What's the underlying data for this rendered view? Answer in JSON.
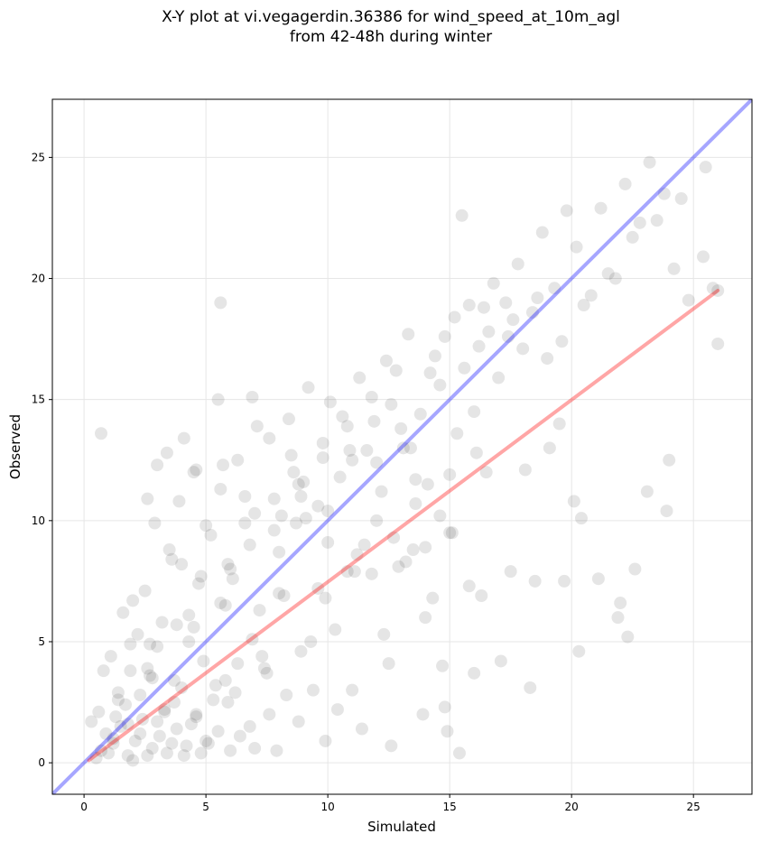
{
  "chart_data": {
    "type": "scatter",
    "title": "X-Y plot at vi.vegagerdin.36386 for wind_speed_at_10m_agl",
    "subtitle": "from 42-48h during winter",
    "xlabel": "Simulated",
    "ylabel": "Observed",
    "xlim": [
      -1.3,
      27.4
    ],
    "ylim": [
      -1.3,
      27.4
    ],
    "xticks": [
      0,
      5,
      10,
      15,
      20,
      25
    ],
    "yticks": [
      0,
      5,
      10,
      15,
      20,
      25
    ],
    "grid": true,
    "point_color": "#000000",
    "point_alpha": 0.1,
    "lines": [
      {
        "role": "identity",
        "color": "#0000ff",
        "x": [
          -1.3,
          27.4
        ],
        "y": [
          -1.3,
          27.4
        ]
      },
      {
        "role": "fit",
        "color": "#ff0000",
        "x": [
          0.2,
          26.0
        ],
        "y": [
          0.1,
          19.5
        ]
      }
    ],
    "points": {
      "x": [
        0.7,
        0.9,
        1.2,
        1.5,
        1.8,
        2.1,
        2.4,
        2.8,
        3.1,
        3.4,
        3.8,
        4.2,
        4.6,
        5.0,
        5.5,
        6.0,
        0.5,
        1.0,
        1.3,
        1.7,
        2.0,
        2.3,
        2.6,
        3.0,
        3.3,
        3.6,
        4.0,
        4.4,
        4.8,
        5.3,
        5.8,
        6.4,
        7.0,
        7.6,
        0.8,
        1.1,
        1.4,
        1.9,
        2.2,
        2.7,
        3.2,
        3.7,
        4.3,
        4.9,
        5.6,
        6.2,
        6.9,
        7.5,
        8.2,
        8.9,
        9.6,
        10.3,
        11.0,
        11.8,
        12.5,
        13.2,
        14.0,
        14.8,
        1.6,
        2.5,
        3.5,
        4.5,
        5.2,
        6.1,
        7.2,
        8.0,
        8.7,
        9.3,
        10.0,
        10.8,
        11.5,
        12.2,
        12.9,
        13.6,
        14.3,
        15.0,
        15.8,
        16.5,
        0.3,
        0.6,
        2.9,
        3.9,
        4.7,
        5.7,
        6.6,
        7.8,
        8.5,
        9.1,
        9.8,
        10.5,
        11.2,
        12.0,
        12.7,
        13.4,
        14.1,
        14.6,
        15.3,
        16.1,
        2.0,
        3.0,
        4.0,
        5.0,
        6.0,
        7.0,
        8.0,
        9.0,
        10.0,
        11.0,
        12.0,
        13.0,
        14.0,
        15.0,
        16.0,
        17.0,
        18.0,
        19.0,
        2.6,
        3.6,
        4.6,
        5.6,
        6.6,
        7.6,
        8.6,
        9.6,
        10.6,
        11.6,
        12.6,
        13.6,
        14.6,
        15.6,
        16.6,
        17.6,
        18.6,
        19.6,
        20.5,
        21.5,
        22.5,
        23.5,
        24.5,
        25.5,
        1.8,
        2.8,
        3.8,
        4.8,
        5.8,
        6.8,
        7.8,
        8.8,
        9.8,
        10.8,
        11.8,
        12.8,
        13.8,
        14.8,
        15.8,
        16.8,
        17.8,
        18.8,
        19.8,
        20.8,
        21.8,
        22.8,
        23.8,
        24.8,
        25.8,
        4.1,
        5.5,
        6.3,
        7.1,
        8.4,
        9.2,
        10.1,
        11.3,
        12.4,
        13.3,
        14.2,
        15.2,
        16.2,
        17.3,
        18.4,
        19.3,
        20.2,
        21.2,
        22.2,
        23.2,
        24.2,
        0.7,
        5.6,
        2.6,
        3.4,
        4.5,
        6.9,
        8.1,
        10.9,
        11.9,
        13.1,
        14.4,
        15.5,
        16.4,
        17.4,
        18.1,
        19.1,
        20.4,
        22.6,
        23.9,
        26.0,
        3.0,
        4.3,
        5.9,
        7.3,
        8.9,
        9.9,
        11.1,
        12.3,
        13.5,
        14.7,
        15.1,
        16.3,
        17.5,
        18.5,
        19.5,
        20.1,
        21.9,
        22.3,
        23.1,
        24.0,
        25.4,
        26.0,
        1.2,
        1.4,
        1.9,
        2.3,
        2.7,
        3.3,
        3.7,
        4.1,
        4.6,
        5.1,
        5.4,
        5.9,
        6.3,
        6.8,
        7.4,
        7.9,
        8.3,
        8.8,
        9.4,
        9.9,
        10.4,
        11.4,
        12.6,
        13.9,
        14.9,
        15.4,
        16.0,
        17.1,
        18.3,
        19.7,
        20.3,
        21.1,
        22.0
      ],
      "y": [
        0.5,
        1.2,
        0.8,
        1.5,
        0.3,
        0.9,
        1.8,
        0.6,
        1.1,
        0.4,
        1.4,
        0.7,
        2.0,
        0.9,
        1.3,
        0.5,
        0.2,
        0.4,
        1.9,
        2.4,
        0.1,
        2.8,
        0.3,
        1.7,
        2.2,
        0.8,
        3.1,
        1.6,
        0.4,
        2.6,
        3.4,
        1.1,
        0.6,
        2.0,
        3.8,
        4.4,
        2.9,
        4.9,
        5.3,
        3.6,
        5.8,
        2.5,
        6.1,
        4.2,
        6.6,
        2.9,
        5.1,
        3.7,
        6.9,
        4.6,
        7.2,
        5.5,
        3.0,
        7.8,
        4.1,
        8.3,
        6.0,
        2.3,
        6.2,
        7.1,
        8.8,
        5.6,
        9.4,
        7.6,
        6.3,
        8.7,
        9.9,
        5.0,
        10.4,
        7.9,
        9.0,
        11.2,
        8.1,
        10.7,
        6.8,
        9.5,
        7.3,
        12.0,
        1.7,
        2.1,
        9.9,
        10.8,
        7.4,
        12.3,
        11.0,
        9.6,
        12.7,
        10.1,
        13.2,
        11.8,
        8.6,
        12.4,
        9.3,
        13.0,
        11.5,
        10.2,
        13.6,
        12.8,
        6.7,
        4.8,
        8.2,
        9.8,
        8.0,
        10.3,
        7.0,
        11.6,
        9.1,
        12.5,
        10.0,
        13.8,
        8.9,
        11.9,
        14.5,
        15.9,
        17.1,
        16.7,
        3.9,
        8.4,
        12.1,
        11.3,
        9.9,
        13.4,
        12.0,
        10.6,
        14.3,
        12.9,
        14.8,
        11.7,
        15.6,
        16.3,
        17.8,
        18.3,
        19.2,
        17.4,
        18.9,
        20.2,
        21.7,
        22.4,
        23.3,
        24.6,
        1.6,
        3.5,
        5.7,
        7.7,
        6.5,
        9.0,
        10.9,
        11.5,
        12.6,
        13.9,
        15.1,
        16.2,
        14.4,
        17.6,
        18.9,
        19.8,
        20.6,
        21.9,
        22.8,
        19.3,
        20.0,
        22.3,
        23.5,
        19.1,
        19.6,
        13.4,
        15.0,
        12.5,
        13.9,
        14.2,
        15.5,
        14.9,
        15.9,
        16.6,
        17.7,
        16.1,
        18.4,
        17.2,
        19.0,
        18.6,
        19.6,
        21.3,
        22.9,
        23.9,
        24.8,
        20.4,
        13.6,
        19.0,
        10.9,
        12.8,
        12.0,
        15.1,
        10.2,
        12.9,
        14.1,
        13.0,
        16.8,
        22.6,
        18.8,
        17.6,
        12.1,
        13.0,
        10.1,
        8.0,
        10.4,
        17.3,
        12.3,
        5.0,
        8.2,
        4.4,
        11.0,
        6.8,
        7.9,
        5.3,
        8.8,
        4.0,
        9.5,
        6.9,
        7.9,
        7.5,
        14.0,
        10.8,
        6.0,
        5.2,
        11.2,
        12.5,
        20.9,
        19.5,
        1.0,
        2.6,
        3.8,
        1.2,
        4.9,
        2.1,
        3.4,
        0.3,
        1.9,
        0.8,
        3.2,
        2.5,
        4.1,
        1.5,
        3.9,
        0.5,
        2.8,
        1.7,
        3.0,
        0.9,
        2.2,
        1.4,
        0.7,
        2.0,
        1.3,
        0.4,
        3.7,
        4.2,
        3.1,
        7.5,
        4.6,
        7.6,
        6.6
      ]
    }
  }
}
